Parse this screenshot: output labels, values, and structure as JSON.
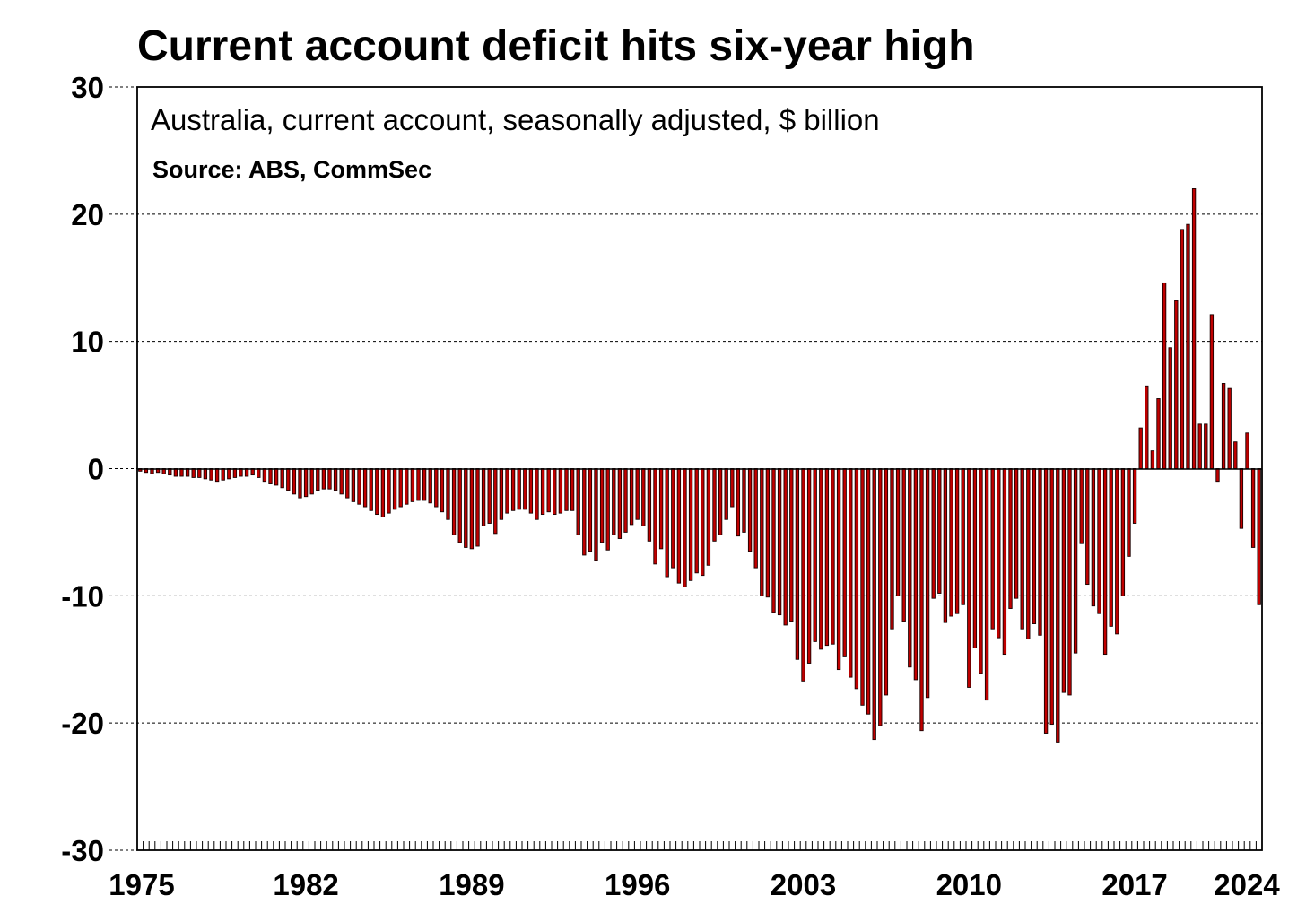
{
  "chart_data": {
    "type": "bar",
    "title": "Current account deficit hits six-year high",
    "subtitle": "Australia, current account, seasonally adjusted, $ billion",
    "source": "Source: ABS, CommSec",
    "xlabel": "",
    "ylabel": "",
    "ylim": [
      -30,
      30
    ],
    "yticks": [
      "30",
      "20",
      "10",
      "0",
      "-10",
      "-20",
      "-30"
    ],
    "ytick_values": [
      30,
      20,
      10,
      0,
      -10,
      -20,
      -30
    ],
    "xtick_labels": [
      "1975",
      "1982",
      "1989",
      "1996",
      "2003",
      "2010",
      "2017",
      "2024"
    ],
    "xtick_years": [
      1975,
      1982,
      1989,
      1996,
      2003,
      2010,
      2017,
      2024
    ],
    "frequency": "quarterly",
    "start_year": 1975,
    "colors": {
      "bar": "#c00000",
      "bar_edge": "#1a0000"
    },
    "values": [
      -0.2,
      -0.3,
      -0.4,
      -0.3,
      -0.4,
      -0.5,
      -0.6,
      -0.6,
      -0.6,
      -0.7,
      -0.7,
      -0.8,
      -0.9,
      -1.0,
      -0.9,
      -0.8,
      -0.7,
      -0.6,
      -0.6,
      -0.5,
      -0.7,
      -1.0,
      -1.2,
      -1.3,
      -1.5,
      -1.7,
      -2.0,
      -2.3,
      -2.2,
      -2.0,
      -1.7,
      -1.6,
      -1.6,
      -1.7,
      -2.0,
      -2.3,
      -2.6,
      -2.8,
      -3.0,
      -3.3,
      -3.6,
      -3.8,
      -3.5,
      -3.2,
      -3.0,
      -2.8,
      -2.6,
      -2.5,
      -2.5,
      -2.7,
      -3.0,
      -3.4,
      -4.0,
      -5.2,
      -5.8,
      -6.2,
      -6.3,
      -6.1,
      -4.5,
      -4.3,
      -5.1,
      -4.0,
      -3.5,
      -3.3,
      -3.2,
      -3.2,
      -3.5,
      -4.0,
      -3.6,
      -3.4,
      -3.6,
      -3.5,
      -3.3,
      -3.3,
      -5.2,
      -6.8,
      -6.5,
      -7.2,
      -5.8,
      -6.4,
      -5.2,
      -5.5,
      -5.0,
      -4.4,
      -4.0,
      -4.5,
      -5.7,
      -7.5,
      -6.3,
      -8.5,
      -7.8,
      -9.0,
      -9.3,
      -8.8,
      -8.2,
      -8.4,
      -7.6,
      -5.7,
      -5.2,
      -4.0,
      -3.0,
      -5.3,
      -5.0,
      -6.5,
      -7.8,
      -10.0,
      -10.1,
      -11.3,
      -11.5,
      -12.3,
      -12.0,
      -15.0,
      -16.7,
      -15.3,
      -13.6,
      -14.2,
      -13.9,
      -13.8,
      -15.8,
      -14.8,
      -16.4,
      -17.3,
      -18.6,
      -19.3,
      -21.3,
      -20.2,
      -17.8,
      -12.6,
      -10.0,
      -12.0,
      -15.6,
      -16.6,
      -20.6,
      -18.0,
      -10.2,
      -9.8,
      -12.1,
      -11.6,
      -11.4,
      -10.7,
      -17.2,
      -14.1,
      -16.1,
      -18.2,
      -12.6,
      -13.3,
      -14.6,
      -11.0,
      -10.2,
      -12.6,
      -13.4,
      -12.2,
      -13.1,
      -20.8,
      -20.1,
      -21.5,
      -17.6,
      -17.8,
      -14.5,
      -5.9,
      -9.1,
      -10.8,
      -11.4,
      -14.6,
      -12.4,
      -13.0,
      -10.0,
      -6.9,
      -4.3,
      3.2,
      6.5,
      1.4,
      5.5,
      14.6,
      9.5,
      13.2,
      18.8,
      19.2,
      22.0,
      3.5,
      3.5,
      12.1,
      -1.0,
      6.7,
      6.3,
      2.1,
      -4.7,
      2.8,
      -6.2,
      -10.7
    ]
  }
}
